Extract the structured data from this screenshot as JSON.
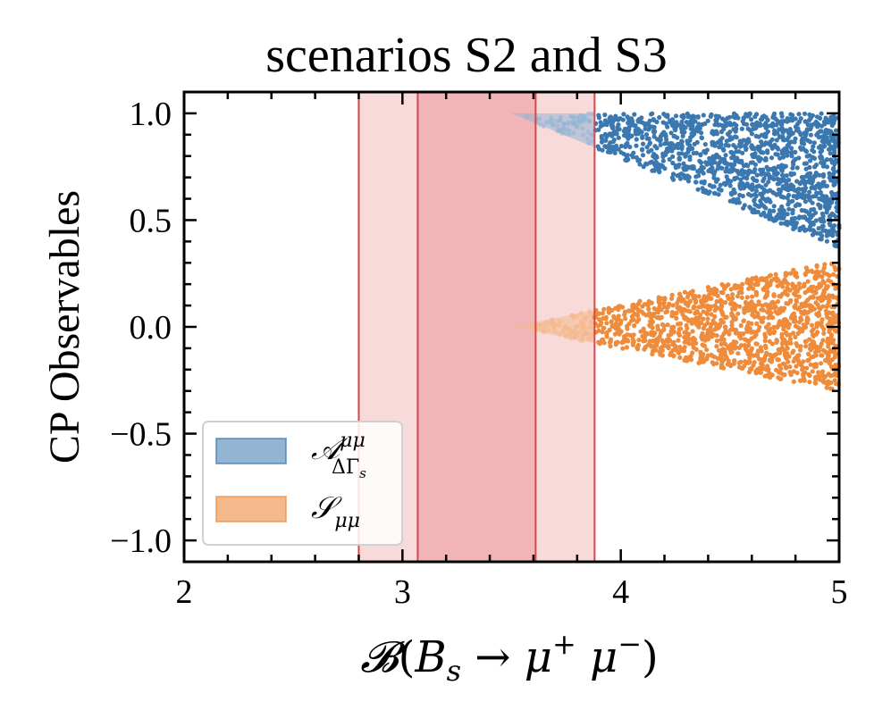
{
  "chart_data": {
    "type": "scatter",
    "title": "scenarios S2 and S3",
    "xlabel": "𝓑(B_s → μ⁺μ⁻)",
    "xlabel_parts": {
      "script_B": "𝓑",
      "open": "(",
      "B": "B",
      "s": "s",
      "arrow": " → ",
      "mu1": "μ",
      "plus": "+",
      "mu2": " μ",
      "minus": "−",
      "close": ")"
    },
    "ylabel": "CP Observables",
    "xlim": [
      2,
      5
    ],
    "ylim": [
      -1.1,
      1.1
    ],
    "xticks": [
      2,
      3,
      4,
      5
    ],
    "xtick_labels": [
      "2",
      "3",
      "4",
      "5"
    ],
    "yticks": [
      -1.0,
      -0.5,
      0.0,
      0.5,
      1.0
    ],
    "ytick_labels": [
      "−1.0",
      "−0.5",
      "0.0",
      "0.5",
      "1.0"
    ],
    "grid": false,
    "legend_position": "lower-left",
    "bands": [
      {
        "name": "outer band",
        "x_range": [
          2.8,
          3.88
        ],
        "color": "#f5c6c8"
      },
      {
        "name": "inner band",
        "x_range": [
          3.07,
          3.61
        ],
        "color": "#eea4a8"
      }
    ],
    "band_edge_color": "#d9464a",
    "series": [
      {
        "name": "𝒜^{μμ}_{ΔΓ_s}",
        "legend": {
          "main": "𝒜",
          "sup": "μμ",
          "sub": "ΔΓ",
          "subsub": "s"
        },
        "color": "#3b78b0",
        "fill_color": "#93b5d3",
        "region": {
          "x_start": 3.5,
          "apex_y": 1.0,
          "x_end": 5.0,
          "y_upper": 1.0,
          "y_lower_at_end": 0.37
        }
      },
      {
        "name": "𝒮_{μμ}",
        "legend": {
          "main": "𝒮",
          "sub": "μμ"
        },
        "color": "#ef8c3c",
        "fill_color": "#f4b98c",
        "region": {
          "x_start": 3.5,
          "apex_y": 0.0,
          "x_end": 5.0,
          "y_upper_at_end": 0.31,
          "y_lower_at_end": -0.3
        }
      }
    ]
  }
}
